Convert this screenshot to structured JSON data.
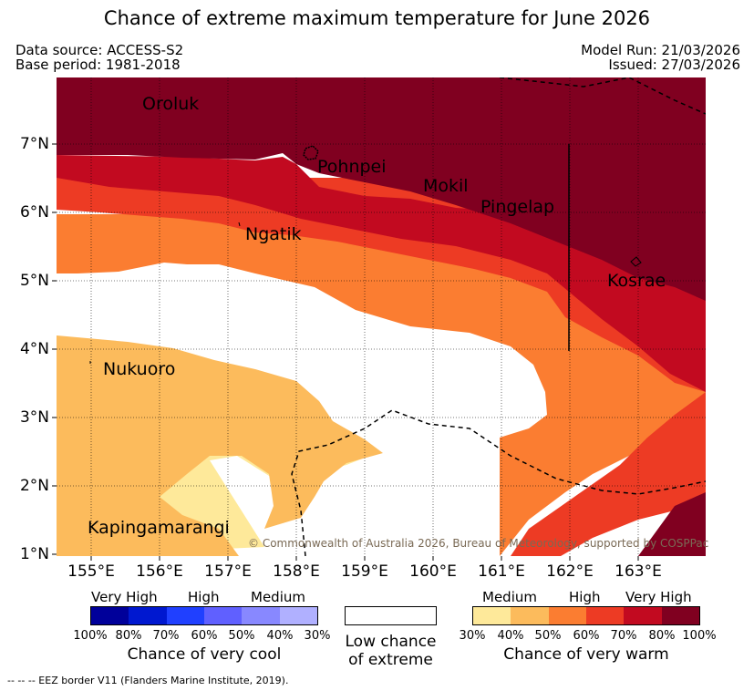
{
  "title": "Chance of extreme maximum temperature for June 2026",
  "meta": {
    "data_source": "Data source: ACCESS-S2",
    "base_period": "Base period: 1981-2018",
    "model_run": "Model Run: 21/03/2026",
    "issued": "Issued: 27/03/2026"
  },
  "map": {
    "lon_ticks": [
      "155°E",
      "156°E",
      "157°E",
      "158°E",
      "159°E",
      "160°E",
      "161°E",
      "162°E",
      "163°E"
    ],
    "lat_ticks": [
      "7°N",
      "6°N",
      "5°N",
      "4°N",
      "3°N",
      "2°N",
      "1°N"
    ],
    "places": {
      "oroluk": "Oroluk",
      "pohnpei": "Pohnpei",
      "mokil": "Mokil",
      "pingelap": "Pingelap",
      "ngatik": "Ngatik",
      "kosrae": "Kosrae",
      "nukuoro": "Nukuoro",
      "kapingamarangi": "Kapingamarangi"
    },
    "copyright": "© Commonwealth of Australia 2026, Bureau of Meteorology, supported by COSPPac"
  },
  "colors": {
    "warm_30": "#fee99a",
    "warm_40": "#fcbb5c",
    "warm_50": "#fb7d31",
    "warm_60": "#ed3b24",
    "warm_70": "#c20a20",
    "warm_80": "#800020",
    "cool_100": "#00009a",
    "cool_80": "#0018d0",
    "cool_70": "#2040ff",
    "cool_60": "#6060ff",
    "cool_50": "#8888ff",
    "cool_40": "#b0b0ff"
  },
  "legend": {
    "cool": {
      "labels": [
        "Very High",
        "High",
        "Medium"
      ],
      "percents": [
        "100%",
        "80%",
        "70%",
        "60%",
        "50%",
        "40%",
        "30%"
      ],
      "title": "Chance of very cool"
    },
    "neutral": {
      "line1": "Low chance",
      "line2": "of extreme"
    },
    "warm": {
      "labels": [
        "Medium",
        "High",
        "Very High"
      ],
      "percents": [
        "30%",
        "40%",
        "50%",
        "60%",
        "70%",
        "80%",
        "100%"
      ],
      "title": "Chance of very warm"
    }
  },
  "footer": "--  --  -- EEZ border V11 (Flanders Marine Institute, 2019)."
}
